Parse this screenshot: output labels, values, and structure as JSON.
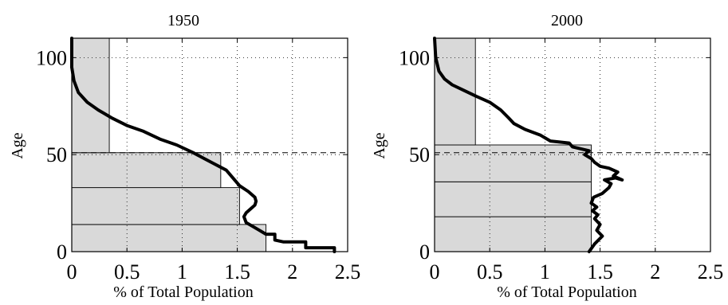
{
  "chart_data": [
    {
      "type": "line",
      "title": "1950",
      "xlabel": "% of Total Population",
      "ylabel": "Age",
      "xlim": [
        0,
        2.5
      ],
      "ylim": [
        0,
        110
      ],
      "xticks": [
        "0",
        "0.5",
        "1",
        "1.5",
        "2",
        "2.5"
      ],
      "yticks": [
        "0",
        "50",
        "100"
      ],
      "grid": true,
      "reference_age": 51,
      "bars": [
        {
          "age_from": 0,
          "age_to": 14,
          "value": 1.76
        },
        {
          "age_from": 14,
          "age_to": 33,
          "value": 1.52
        },
        {
          "age_from": 33,
          "age_to": 51,
          "value": 1.35
        },
        {
          "age_from": 51,
          "age_to": 110,
          "value": 0.34
        }
      ],
      "series": [
        {
          "x": [
            2.38,
            2.38,
            2.12,
            2.12,
            1.92,
            1.84,
            1.84,
            1.76,
            1.7,
            1.64,
            1.58,
            1.56,
            1.58,
            1.62,
            1.66,
            1.67,
            1.66,
            1.6,
            1.52,
            1.46,
            1.4,
            1.3,
            1.2,
            1.1,
            0.95,
            0.8,
            0.65,
            0.5,
            0.36,
            0.24,
            0.14,
            0.06,
            0.02,
            0.0,
            0.0
          ],
          "y": [
            0,
            2,
            2,
            5,
            5,
            6,
            9,
            9,
            11,
            13,
            15,
            18,
            20,
            22,
            24,
            26,
            28,
            31,
            34,
            38,
            42,
            45,
            48,
            51,
            55,
            58,
            62,
            65,
            69,
            73,
            77,
            82,
            88,
            95,
            110
          ]
        }
      ]
    },
    {
      "type": "line",
      "title": "2000",
      "xlabel": "% of Total Population",
      "ylabel": "Age",
      "xlim": [
        0,
        2.5
      ],
      "ylim": [
        0,
        110
      ],
      "xticks": [
        "0",
        "0.5",
        "1",
        "1.5",
        "2",
        "2.5"
      ],
      "yticks": [
        "0",
        "50",
        "100"
      ],
      "grid": true,
      "reference_age": 51,
      "bars": [
        {
          "age_from": 0,
          "age_to": 18,
          "value": 1.42
        },
        {
          "age_from": 18,
          "age_to": 36,
          "value": 1.42
        },
        {
          "age_from": 36,
          "age_to": 55,
          "value": 1.42
        },
        {
          "age_from": 55,
          "age_to": 110,
          "value": 0.37
        }
      ],
      "series": [
        {
          "x": [
            1.4,
            1.45,
            1.52,
            1.47,
            1.5,
            1.45,
            1.48,
            1.43,
            1.47,
            1.42,
            1.44,
            1.52,
            1.58,
            1.6,
            1.54,
            1.64,
            1.7,
            1.62,
            1.66,
            1.58,
            1.5,
            1.45,
            1.42,
            1.36,
            1.4,
            1.25,
            1.22,
            1.05,
            0.96,
            0.82,
            0.72,
            0.67,
            0.6,
            0.5,
            0.38,
            0.27,
            0.16,
            0.09,
            0.04,
            0.01,
            0.0
          ],
          "y": [
            0,
            4,
            8,
            11,
            14,
            17,
            19,
            21,
            23,
            25,
            28,
            30,
            33,
            35,
            37,
            38,
            37,
            39,
            41,
            43,
            44,
            46,
            48,
            50,
            52,
            54,
            56,
            57,
            60,
            63,
            66,
            69,
            73,
            77,
            80,
            83,
            86,
            89,
            93,
            100,
            110
          ]
        }
      ]
    }
  ]
}
